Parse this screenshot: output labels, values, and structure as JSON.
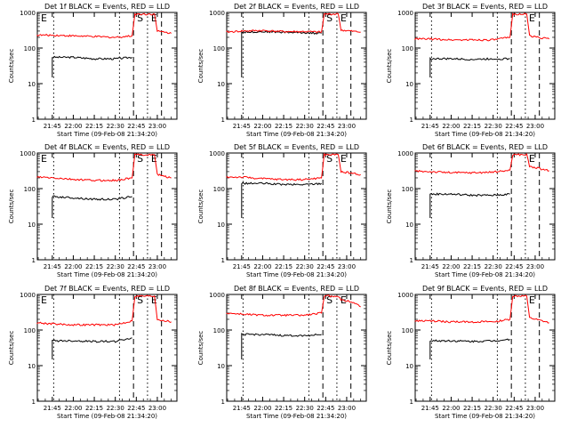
{
  "figure": {
    "panels": [
      {
        "title": "Det 1f BLACK = Events, RED = LLD",
        "xlabel": "Start Time (09-Feb-08 21:34:20)",
        "ylabel": "Counts/sec"
      },
      {
        "title": "Det 2f BLACK = Events, RED = LLD",
        "xlabel": "Start Time (09-Feb-08 21:34:20)",
        "ylabel": "Counts/sec"
      },
      {
        "title": "Det 3f BLACK = Events, RED = LLD",
        "xlabel": "Start Time (09-Feb-08 21:34:20)",
        "ylabel": "Counts/sec"
      },
      {
        "title": "Det 4f BLACK = Events, RED = LLD",
        "xlabel": "Start Time (09-Feb-08 21:34:20)",
        "ylabel": "Counts/sec"
      },
      {
        "title": "Det 5f BLACK = Events, RED = LLD",
        "xlabel": "Start Time (09-Feb-08 21:34:20)",
        "ylabel": "Counts/sec"
      },
      {
        "title": "Det 6f BLACK = Events, RED = LLD",
        "xlabel": "Start Time (09-Feb-08 21:34:20)",
        "ylabel": "Counts/sec"
      },
      {
        "title": "Det 7f BLACK = Events, RED = LLD",
        "xlabel": "Start Time (09-Feb-08 21:34:20)",
        "ylabel": "Counts/sec"
      },
      {
        "title": "Det 8f BLACK = Events, RED = LLD",
        "xlabel": "Start Time (09-Feb-08 21:34:20)",
        "ylabel": "Counts/sec"
      },
      {
        "title": "Det 9f BLACK = Events, RED = LLD",
        "xlabel": "Start Time (09-Feb-08 21:34:20)",
        "ylabel": "Counts/sec"
      }
    ]
  },
  "chart_data": [
    {
      "type": "line",
      "title": "Det 1f BLACK = Events, RED = LLD",
      "xlabel": "Start Time (09-Feb-08 21:34:20)",
      "ylabel": "Counts/sec",
      "y_scale": "log",
      "ylim": [
        1,
        1000
      ],
      "x_ticks": [
        "21:45",
        "22:00",
        "22:15",
        "22:30",
        "22:45",
        "23:00"
      ],
      "y_ticks": [
        "1",
        "10",
        "100",
        "1000"
      ],
      "annotations": [
        "E",
        "S",
        "E"
      ],
      "colors": {
        "events": "#000000",
        "lld": "#ff0000"
      },
      "series": [
        {
          "name": "Events",
          "color": "#000000",
          "x": [
            "21:45",
            "22:00",
            "22:15",
            "22:30",
            "22:42"
          ],
          "y": [
            55,
            55,
            50,
            50,
            55
          ]
        },
        {
          "name": "LLD",
          "color": "#ff0000",
          "x": [
            "21:34",
            "21:45",
            "22:00",
            "22:15",
            "22:30",
            "22:42",
            "22:44",
            "22:58",
            "23:00",
            "23:10"
          ],
          "y": [
            230,
            230,
            220,
            210,
            200,
            220,
            900,
            900,
            300,
            260
          ]
        }
      ]
    },
    {
      "type": "line",
      "title": "Det 2f BLACK = Events, RED = LLD",
      "xlabel": "Start Time (09-Feb-08 21:34:20)",
      "ylabel": "Counts/sec",
      "y_scale": "log",
      "ylim": [
        1,
        1000
      ],
      "x_ticks": [
        "21:45",
        "22:00",
        "22:15",
        "22:30",
        "22:45",
        "23:00"
      ],
      "y_ticks": [
        "1",
        "10",
        "100",
        "1000"
      ],
      "annotations": [
        "S",
        "E"
      ],
      "colors": {
        "events": "#000000",
        "lld": "#ff0000"
      },
      "series": [
        {
          "name": "Events",
          "color": "#000000",
          "x": [
            "21:45",
            "22:00",
            "22:15",
            "22:30",
            "22:42"
          ],
          "y": [
            280,
            290,
            280,
            270,
            260
          ]
        },
        {
          "name": "LLD",
          "color": "#ff0000",
          "x": [
            "21:34",
            "21:45",
            "22:00",
            "22:15",
            "22:30",
            "22:42",
            "22:44",
            "22:54",
            "22:56",
            "23:10"
          ],
          "y": [
            280,
            300,
            310,
            290,
            290,
            280,
            900,
            900,
            320,
            280
          ]
        }
      ]
    },
    {
      "type": "line",
      "title": "Det 3f BLACK = Events, RED = LLD",
      "xlabel": "Start Time (09-Feb-08 21:34:20)",
      "ylabel": "Counts/sec",
      "y_scale": "log",
      "ylim": [
        1,
        1000
      ],
      "x_ticks": [
        "21:45",
        "22:00",
        "22:15",
        "22:30",
        "22:45",
        "23:00"
      ],
      "y_ticks": [
        "1",
        "10",
        "100",
        "1000"
      ],
      "annotations": [
        "E"
      ],
      "colors": {
        "events": "#000000",
        "lld": "#ff0000"
      },
      "series": [
        {
          "name": "Events",
          "color": "#000000",
          "x": [
            "21:45",
            "22:00",
            "22:15",
            "22:30",
            "22:42"
          ],
          "y": [
            50,
            50,
            48,
            50,
            50
          ]
        },
        {
          "name": "LLD",
          "color": "#ff0000",
          "x": [
            "21:34",
            "21:45",
            "22:00",
            "22:15",
            "22:30",
            "22:42",
            "22:44",
            "22:54",
            "22:56",
            "23:10"
          ],
          "y": [
            180,
            180,
            170,
            170,
            170,
            200,
            900,
            900,
            220,
            180
          ]
        }
      ]
    },
    {
      "type": "line",
      "title": "Det 4f BLACK = Events, RED = LLD",
      "xlabel": "Start Time (09-Feb-08 21:34:20)",
      "ylabel": "Counts/sec",
      "y_scale": "log",
      "ylim": [
        1,
        1000
      ],
      "x_ticks": [
        "21:45",
        "22:00",
        "22:15",
        "22:30",
        "22:45",
        "23:00"
      ],
      "y_ticks": [
        "1",
        "10",
        "100",
        "1000"
      ],
      "annotations": [
        "E",
        "S",
        "E"
      ],
      "colors": {
        "events": "#000000",
        "lld": "#ff0000"
      },
      "series": [
        {
          "name": "Events",
          "color": "#000000",
          "x": [
            "21:45",
            "22:00",
            "22:15",
            "22:30",
            "22:42"
          ],
          "y": [
            60,
            55,
            50,
            50,
            60
          ]
        },
        {
          "name": "LLD",
          "color": "#ff0000",
          "x": [
            "21:34",
            "21:45",
            "22:00",
            "22:15",
            "22:30",
            "22:42",
            "22:44",
            "22:58",
            "23:00",
            "23:10"
          ],
          "y": [
            210,
            200,
            180,
            170,
            170,
            200,
            900,
            900,
            250,
            200
          ]
        }
      ]
    },
    {
      "type": "line",
      "title": "Det 5f BLACK = Events, RED = LLD",
      "xlabel": "Start Time (09-Feb-08 21:34:20)",
      "ylabel": "Counts/sec",
      "y_scale": "log",
      "ylim": [
        1,
        1000
      ],
      "x_ticks": [
        "21:45",
        "22:00",
        "22:15",
        "22:30",
        "22:45",
        "23:00"
      ],
      "y_ticks": [
        "1",
        "10",
        "100",
        "1000"
      ],
      "annotations": [
        "S",
        "E"
      ],
      "colors": {
        "events": "#000000",
        "lld": "#ff0000"
      },
      "series": [
        {
          "name": "Events",
          "color": "#000000",
          "x": [
            "21:45",
            "22:00",
            "22:15",
            "22:30",
            "22:42"
          ],
          "y": [
            140,
            140,
            130,
            130,
            140
          ]
        },
        {
          "name": "LLD",
          "color": "#ff0000",
          "x": [
            "21:34",
            "21:45",
            "22:00",
            "22:15",
            "22:30",
            "22:42",
            "22:44",
            "22:54",
            "22:56",
            "23:10"
          ],
          "y": [
            210,
            210,
            190,
            180,
            180,
            200,
            900,
            900,
            300,
            250
          ]
        }
      ]
    },
    {
      "type": "line",
      "title": "Det 6f BLACK = Events, RED = LLD",
      "xlabel": "Start Time (09-Feb-08 21:34:20)",
      "ylabel": "Counts/sec",
      "y_scale": "log",
      "ylim": [
        1,
        1000
      ],
      "x_ticks": [
        "21:45",
        "22:00",
        "22:15",
        "22:30",
        "22:45",
        "23:00"
      ],
      "y_ticks": [
        "1",
        "10",
        "100",
        "1000"
      ],
      "annotations": [
        "E"
      ],
      "colors": {
        "events": "#000000",
        "lld": "#ff0000"
      },
      "series": [
        {
          "name": "Events",
          "color": "#000000",
          "x": [
            "21:45",
            "22:00",
            "22:15",
            "22:30",
            "22:42"
          ],
          "y": [
            70,
            70,
            65,
            65,
            70
          ]
        },
        {
          "name": "LLD",
          "color": "#ff0000",
          "x": [
            "21:34",
            "21:45",
            "22:00",
            "22:15",
            "22:30",
            "22:42",
            "22:44",
            "22:54",
            "22:56",
            "23:10"
          ],
          "y": [
            310,
            300,
            280,
            280,
            290,
            330,
            900,
            900,
            420,
            320
          ]
        }
      ]
    },
    {
      "type": "line",
      "title": "Det 7f BLACK = Events, RED = LLD",
      "xlabel": "Start Time (09-Feb-08 21:34:20)",
      "ylabel": "Counts/sec",
      "y_scale": "log",
      "ylim": [
        1,
        1000
      ],
      "x_ticks": [
        "21:45",
        "22:00",
        "22:15",
        "22:30",
        "22:45",
        "23:00"
      ],
      "y_ticks": [
        "1",
        "10",
        "100",
        "1000"
      ],
      "annotations": [
        "E",
        "S",
        "E"
      ],
      "colors": {
        "events": "#000000",
        "lld": "#ff0000"
      },
      "series": [
        {
          "name": "Events",
          "color": "#000000",
          "x": [
            "21:45",
            "22:00",
            "22:15",
            "22:30",
            "22:42"
          ],
          "y": [
            50,
            50,
            48,
            48,
            60
          ]
        },
        {
          "name": "LLD",
          "color": "#ff0000",
          "x": [
            "21:34",
            "21:45",
            "22:00",
            "22:15",
            "22:30",
            "22:42",
            "22:44",
            "22:58",
            "23:00",
            "23:10"
          ],
          "y": [
            160,
            150,
            140,
            140,
            140,
            180,
            900,
            900,
            200,
            170
          ]
        }
      ]
    },
    {
      "type": "line",
      "title": "Det 8f BLACK = Events, RED = LLD",
      "xlabel": "Start Time (09-Feb-08 21:34:20)",
      "ylabel": "Counts/sec",
      "y_scale": "log",
      "ylim": [
        1,
        1000
      ],
      "x_ticks": [
        "21:45",
        "22:00",
        "22:15",
        "22:30",
        "22:45",
        "23:00"
      ],
      "y_ticks": [
        "1",
        "10",
        "100",
        "1000"
      ],
      "annotations": [
        "S",
        "E"
      ],
      "colors": {
        "events": "#000000",
        "lld": "#ff0000"
      },
      "series": [
        {
          "name": "Events",
          "color": "#000000",
          "x": [
            "21:45",
            "22:00",
            "22:15",
            "22:30",
            "22:42"
          ],
          "y": [
            75,
            75,
            70,
            70,
            75
          ]
        },
        {
          "name": "LLD",
          "color": "#ff0000",
          "x": [
            "21:34",
            "21:45",
            "22:00",
            "22:15",
            "22:30",
            "22:42",
            "22:44",
            "22:54",
            "22:56",
            "23:05",
            "23:10"
          ],
          "y": [
            300,
            280,
            260,
            260,
            260,
            300,
            900,
            900,
            700,
            600,
            450
          ]
        }
      ]
    },
    {
      "type": "line",
      "title": "Det 9f BLACK = Events, RED = LLD",
      "xlabel": "Start Time (09-Feb-08 21:34:20)",
      "ylabel": "Counts/sec",
      "y_scale": "log",
      "ylim": [
        1,
        1000
      ],
      "x_ticks": [
        "21:45",
        "22:00",
        "22:15",
        "22:30",
        "22:45",
        "23:00"
      ],
      "y_ticks": [
        "1",
        "10",
        "100",
        "1000"
      ],
      "annotations": [
        "E"
      ],
      "colors": {
        "events": "#000000",
        "lld": "#ff0000"
      },
      "series": [
        {
          "name": "Events",
          "color": "#000000",
          "x": [
            "21:45",
            "22:00",
            "22:15",
            "22:30",
            "22:42"
          ],
          "y": [
            50,
            50,
            48,
            50,
            55
          ]
        },
        {
          "name": "LLD",
          "color": "#ff0000",
          "x": [
            "21:34",
            "21:45",
            "22:00",
            "22:15",
            "22:30",
            "22:42",
            "22:44",
            "22:54",
            "22:56",
            "23:10"
          ],
          "y": [
            180,
            180,
            170,
            170,
            170,
            200,
            900,
            900,
            220,
            160
          ]
        }
      ]
    }
  ]
}
